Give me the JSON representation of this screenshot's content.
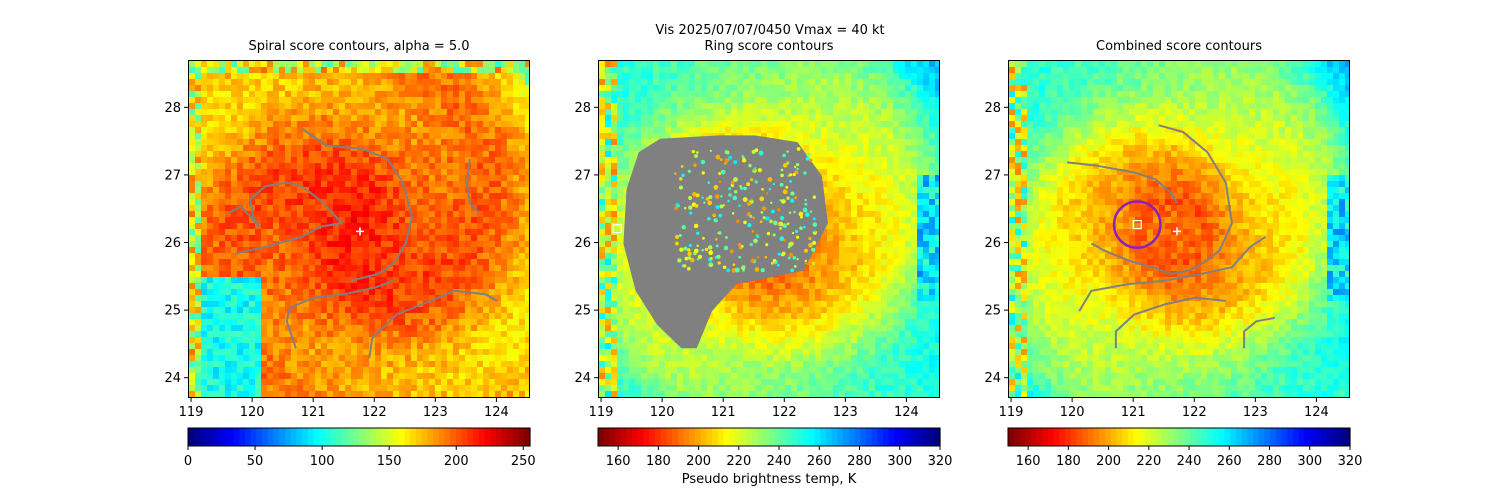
{
  "figure": {
    "suptitle_line1": "Vis  2025/07/07/0450    Vmax = 40 kt",
    "colorbar_label": "Pseudo brightness temp, K"
  },
  "colors": {
    "contour": "#808080",
    "ring": "#8b22b4",
    "marker": "#ffffff"
  },
  "chart_data": [
    {
      "type": "heatmap",
      "title": "Spiral score contours, alpha =  5.0",
      "x_range": [
        118.95,
        124.55
      ],
      "y_range": [
        23.7,
        28.7
      ],
      "x_ticks": [
        119,
        120,
        121,
        122,
        123,
        124
      ],
      "y_ticks": [
        24,
        25,
        26,
        27,
        28
      ],
      "colormap": "jet",
      "colorbar": {
        "range": [
          0,
          255
        ],
        "ticks": [
          0,
          50,
          100,
          150,
          200,
          250
        ]
      },
      "markers": [
        {
          "type": "plus",
          "lon": 121.75,
          "lat": 26.18
        }
      ],
      "contours": [
        [
          [
            120.8,
            27.7
          ],
          [
            121.2,
            27.45
          ],
          [
            121.8,
            27.4
          ],
          [
            122.2,
            27.25
          ],
          [
            122.45,
            26.9
          ],
          [
            122.6,
            26.4
          ],
          [
            122.5,
            26.0
          ],
          [
            122.3,
            25.7
          ],
          [
            122.05,
            25.55
          ],
          [
            121.6,
            25.45
          ]
        ],
        [
          [
            119.7,
            25.85
          ],
          [
            120.2,
            25.95
          ],
          [
            120.8,
            26.1
          ],
          [
            121.1,
            26.25
          ],
          [
            121.45,
            26.3
          ],
          [
            121.15,
            26.6
          ],
          [
            120.8,
            26.85
          ],
          [
            120.55,
            26.9
          ],
          [
            120.2,
            26.85
          ],
          [
            119.95,
            26.65
          ],
          [
            120.0,
            26.4
          ],
          [
            120.1,
            26.25
          ],
          [
            119.8,
            26.55
          ],
          [
            119.6,
            26.45
          ]
        ],
        [
          [
            120.7,
            24.45
          ],
          [
            120.55,
            24.85
          ],
          [
            120.6,
            25.05
          ],
          [
            121.0,
            25.2
          ],
          [
            121.5,
            25.25
          ],
          [
            122.0,
            25.35
          ],
          [
            122.3,
            25.45
          ]
        ],
        [
          [
            121.9,
            24.3
          ],
          [
            121.95,
            24.6
          ],
          [
            122.35,
            24.95
          ],
          [
            122.9,
            25.15
          ],
          [
            123.3,
            25.3
          ],
          [
            123.8,
            25.25
          ],
          [
            124.0,
            25.15
          ]
        ],
        [
          [
            123.55,
            27.25
          ],
          [
            123.5,
            26.9
          ],
          [
            123.55,
            26.6
          ],
          [
            123.7,
            26.45
          ]
        ]
      ],
      "colors": {
        "background_tone": "#0a3cff"
      }
    },
    {
      "type": "heatmap",
      "title": "Ring score contours",
      "x_range": [
        118.95,
        124.55
      ],
      "y_range": [
        23.7,
        28.7
      ],
      "x_ticks": [
        119,
        120,
        121,
        122,
        123,
        124
      ],
      "y_ticks": [
        24,
        25,
        26,
        27,
        28
      ],
      "colormap": "jet_r",
      "colorbar": {
        "range": [
          150,
          320
        ],
        "ticks": [
          160,
          180,
          200,
          220,
          240,
          260,
          280,
          300,
          320
        ]
      },
      "markers": [
        {
          "type": "square",
          "lon": 119.25,
          "lat": 26.22
        }
      ],
      "filled_region": [
        [
          119.6,
          27.35
        ],
        [
          119.95,
          27.55
        ],
        [
          120.9,
          27.6
        ],
        [
          121.5,
          27.6
        ],
        [
          122.2,
          27.5
        ],
        [
          122.6,
          27.0
        ],
        [
          122.7,
          26.3
        ],
        [
          122.3,
          25.6
        ],
        [
          121.2,
          25.4
        ],
        [
          120.8,
          25.0
        ],
        [
          120.55,
          24.45
        ],
        [
          120.3,
          24.45
        ],
        [
          119.9,
          24.8
        ],
        [
          119.55,
          25.3
        ],
        [
          119.35,
          26.0
        ],
        [
          119.4,
          26.8
        ]
      ],
      "colors": {
        "background_tone": "#ff5a00"
      }
    },
    {
      "type": "heatmap",
      "title": "Combined score contours",
      "x_range": [
        118.95,
        124.55
      ],
      "y_range": [
        23.7,
        28.7
      ],
      "x_ticks": [
        119,
        120,
        121,
        122,
        123,
        124
      ],
      "y_ticks": [
        24,
        25,
        26,
        27,
        28
      ],
      "colormap": "jet_r",
      "colorbar": {
        "range": [
          150,
          320
        ],
        "ticks": [
          160,
          180,
          200,
          220,
          240,
          260,
          280,
          300,
          320
        ]
      },
      "markers": [
        {
          "type": "plus",
          "lon": 121.7,
          "lat": 26.18
        },
        {
          "type": "square",
          "lon": 121.05,
          "lat": 26.28
        }
      ],
      "ring": {
        "lon": 121.05,
        "lat": 26.28,
        "radius_deg": 0.38
      },
      "contours": [
        [
          [
            121.4,
            27.75
          ],
          [
            121.8,
            27.65
          ],
          [
            122.2,
            27.35
          ],
          [
            122.5,
            26.9
          ],
          [
            122.6,
            26.3
          ],
          [
            122.4,
            25.9
          ],
          [
            122.2,
            25.75
          ],
          [
            121.9,
            25.6
          ],
          [
            121.6,
            25.55
          ],
          [
            121.3,
            25.65
          ],
          [
            120.9,
            25.75
          ],
          [
            120.5,
            25.9
          ],
          [
            120.3,
            26.0
          ]
        ],
        [
          [
            119.9,
            27.2
          ],
          [
            120.4,
            27.15
          ],
          [
            121.0,
            27.05
          ],
          [
            121.35,
            26.95
          ],
          [
            121.6,
            26.75
          ],
          [
            121.7,
            26.6
          ]
        ],
        [
          [
            120.1,
            25.0
          ],
          [
            120.3,
            25.3
          ],
          [
            120.9,
            25.4
          ],
          [
            121.5,
            25.45
          ],
          [
            122.1,
            25.55
          ],
          [
            122.6,
            25.65
          ],
          [
            122.9,
            25.95
          ],
          [
            123.15,
            26.1
          ]
        ],
        [
          [
            120.7,
            24.45
          ],
          [
            120.7,
            24.7
          ],
          [
            121.0,
            24.95
          ],
          [
            121.5,
            25.1
          ],
          [
            122.0,
            25.2
          ],
          [
            122.5,
            25.15
          ]
        ],
        [
          [
            122.8,
            24.45
          ],
          [
            122.8,
            24.7
          ],
          [
            123.0,
            24.85
          ],
          [
            123.3,
            24.9
          ]
        ]
      ],
      "colors": {
        "background_tone": "#ff4000"
      }
    }
  ]
}
